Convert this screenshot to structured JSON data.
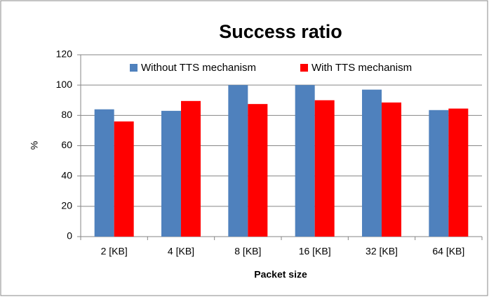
{
  "chart_data": {
    "type": "bar",
    "title": "Success ratio",
    "x_label": "Packet size",
    "y_label": "%",
    "categories": [
      "2 [KB]",
      "4 [KB]",
      "8 [KB]",
      "16 [KB]",
      "32 [KB]",
      "64 [KB]"
    ],
    "series": [
      {
        "name": "Without TTS mechanism",
        "color": "#4f81bd",
        "values": [
          84,
          83,
          100,
          100,
          97,
          83.5
        ]
      },
      {
        "name": "With TTS mechanism",
        "color": "#ff0000",
        "values": [
          76,
          89.5,
          87.5,
          90,
          88.5,
          84.5
        ]
      }
    ],
    "ylim": [
      0,
      120
    ],
    "yticks": [
      0,
      20,
      40,
      60,
      80,
      100,
      120
    ],
    "grid": true,
    "legend": "top"
  }
}
